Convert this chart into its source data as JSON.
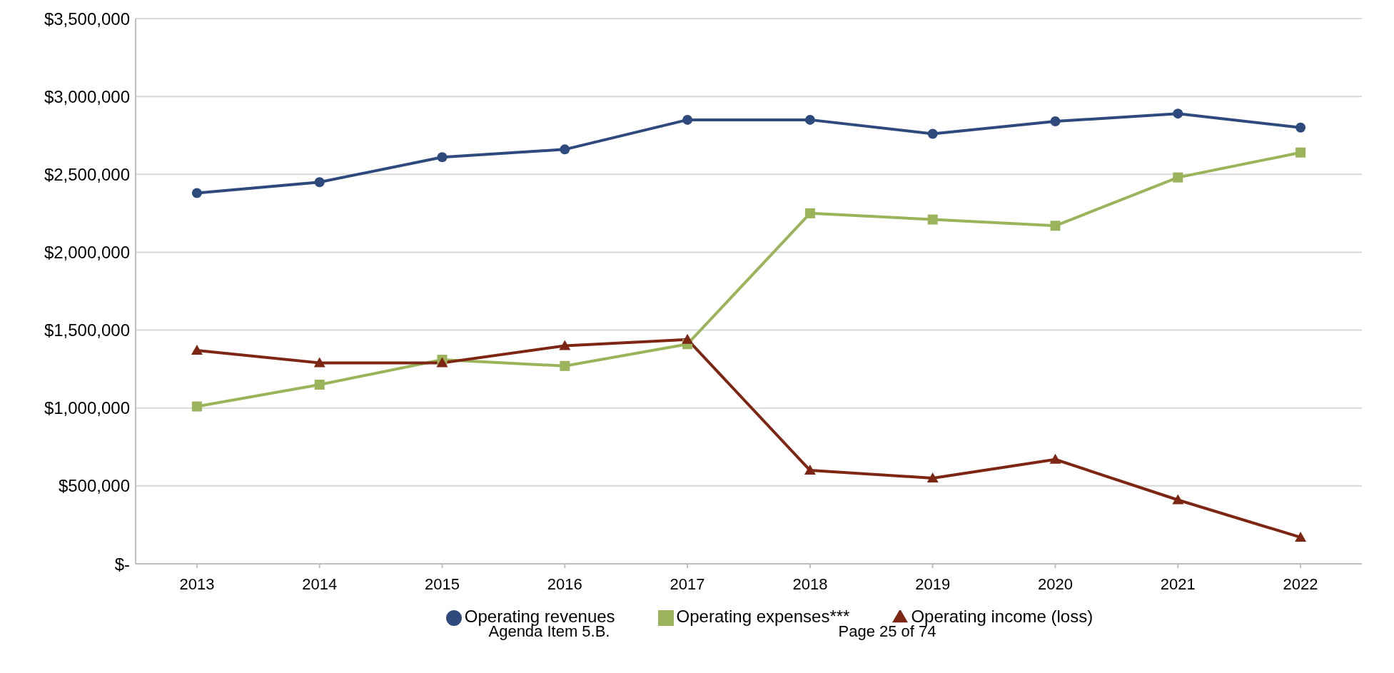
{
  "chart_data": {
    "type": "line",
    "categories": [
      "2013",
      "2014",
      "2015",
      "2016",
      "2017",
      "2018",
      "2019",
      "2020",
      "2021",
      "2022"
    ],
    "series": [
      {
        "name": "Operating revenues",
        "color": "#2e4a7d",
        "marker": "circle",
        "values": [
          2380000,
          2450000,
          2610000,
          2660000,
          2850000,
          2850000,
          2760000,
          2840000,
          2890000,
          2800000
        ]
      },
      {
        "name": "Operating expenses***",
        "color": "#9bb35a",
        "marker": "square",
        "values": [
          1010000,
          1150000,
          1310000,
          1270000,
          1410000,
          2250000,
          2210000,
          2170000,
          2480000,
          2640000
        ]
      },
      {
        "name": "Operating income (loss)",
        "color": "#7d2614",
        "marker": "triangle",
        "values": [
          1370000,
          1290000,
          1290000,
          1400000,
          1440000,
          600000,
          550000,
          670000,
          410000,
          170000
        ]
      }
    ],
    "ylim": [
      0,
      3500000
    ],
    "yticks": [
      {
        "value": 0,
        "label": "$-"
      },
      {
        "value": 500000,
        "label": "$500,000"
      },
      {
        "value": 1000000,
        "label": "$1,000,000"
      },
      {
        "value": 1500000,
        "label": "$1,500,000"
      },
      {
        "value": 2000000,
        "label": "$2,000,000"
      },
      {
        "value": 2500000,
        "label": "$2,500,000"
      },
      {
        "value": 3000000,
        "label": "$3,000,000"
      },
      {
        "value": 3500000,
        "label": "$3,500,000"
      }
    ],
    "grid": "y",
    "legend": "bottom",
    "line_style": "solid",
    "annotations": [
      "Agenda Item 5.B.",
      "Page 25 of 74"
    ]
  }
}
